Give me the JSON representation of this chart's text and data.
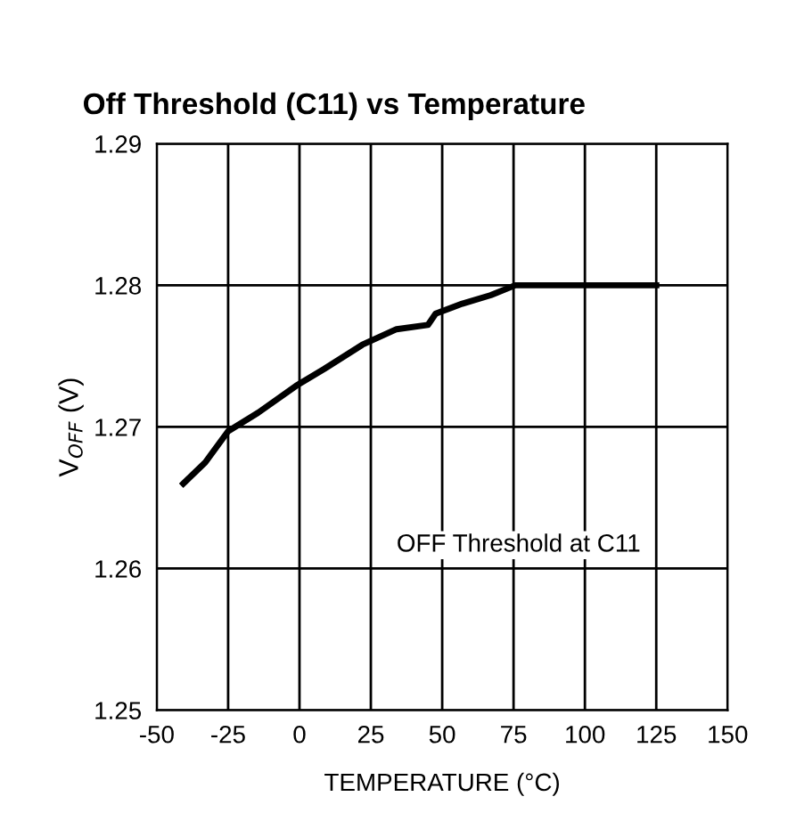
{
  "chart_data": {
    "type": "line",
    "title": "Off Threshold (C11) vs Temperature",
    "xlabel": "TEMPERATURE (°C)",
    "ylabel": "V$_{OFF}$ (V)",
    "series": [
      {
        "name": "OFF Threshold at C11",
        "color": "#000000",
        "x": [
          -40.7,
          -33,
          -25,
          -14.5,
          -1.2,
          8.7,
          22,
          34,
          45,
          47.7,
          57,
          67,
          75.6,
          100,
          125
        ],
        "values": [
          1.266,
          1.2675,
          1.2697,
          1.271,
          1.2729,
          1.2741,
          1.2758,
          1.2769,
          1.2772,
          1.278,
          1.2787,
          1.2793,
          1.28,
          1.28,
          1.28
        ]
      }
    ],
    "xlim": [
      -50,
      150
    ],
    "xticks": [
      -50,
      -25,
      0,
      25,
      50,
      75,
      100,
      125,
      150
    ],
    "ylim": [
      1.25,
      1.29
    ],
    "yticks": [
      {
        "value": 1.25,
        "label": "1.25"
      },
      {
        "value": 1.26,
        "label": "1.26"
      },
      {
        "value": 1.27,
        "label": "1.27"
      },
      {
        "value": 1.28,
        "label": "1.28"
      },
      {
        "value": 1.29,
        "label": "1.29"
      }
    ],
    "grid": true,
    "legend": false,
    "marker": "none",
    "line_style": "solid"
  }
}
